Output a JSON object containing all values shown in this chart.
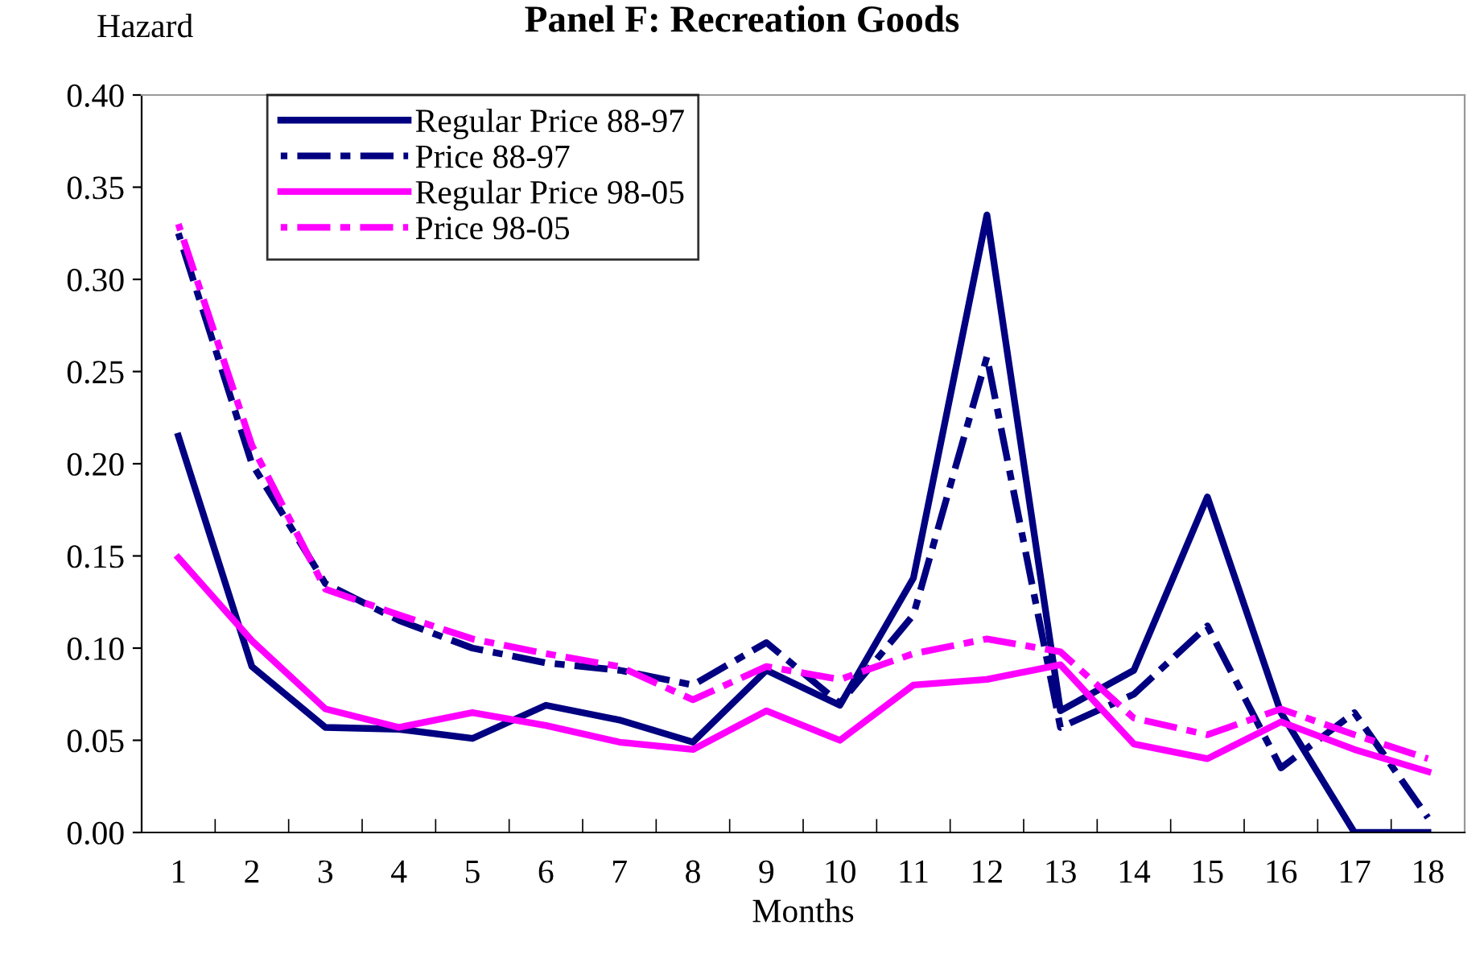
{
  "chart_data": {
    "type": "line",
    "title": "Panel F: Recreation Goods",
    "xlabel": "Months",
    "ylabel": "Hazard",
    "categories": [
      "1",
      "2",
      "3",
      "4",
      "5",
      "6",
      "7",
      "8",
      "9",
      "10",
      "11",
      "12",
      "13",
      "14",
      "15",
      "16",
      "17",
      "18"
    ],
    "series": [
      {
        "name": "Regular Price 88-97",
        "color": "#000080",
        "line_style": "solid",
        "values": [
          0.215,
          0.09,
          0.057,
          0.056,
          0.051,
          0.069,
          0.061,
          0.049,
          0.088,
          0.069,
          0.138,
          0.335,
          0.066,
          0.088,
          0.182,
          0.065,
          0.0,
          0.0
        ]
      },
      {
        "name": "Price 88-97",
        "color": "#000080",
        "line_style": "dashed",
        "values": [
          0.325,
          0.2,
          0.135,
          0.115,
          0.1,
          0.092,
          0.088,
          0.08,
          0.103,
          0.07,
          0.118,
          0.258,
          0.057,
          0.075,
          0.112,
          0.035,
          0.065,
          0.008
        ]
      },
      {
        "name": "Regular Price 98-05",
        "color": "#ff00ff",
        "line_style": "solid",
        "values": [
          0.149,
          0.104,
          0.067,
          0.057,
          0.065,
          0.058,
          0.049,
          0.045,
          0.066,
          0.05,
          0.08,
          0.083,
          0.091,
          0.048,
          0.04,
          0.06,
          0.045,
          0.033
        ]
      },
      {
        "name": "Price 98-05",
        "color": "#ff00ff",
        "line_style": "dashed",
        "values": [
          0.33,
          0.21,
          0.132,
          0.118,
          0.105,
          0.097,
          0.09,
          0.072,
          0.09,
          0.083,
          0.097,
          0.105,
          0.098,
          0.062,
          0.053,
          0.067,
          0.053,
          0.04
        ]
      }
    ],
    "ylim": [
      0,
      0.4
    ],
    "yticks": [
      {
        "value": 0,
        "label": "0.00"
      },
      {
        "value": 0.05,
        "label": "0.05"
      },
      {
        "value": 0.1,
        "label": "0.10"
      },
      {
        "value": 0.15,
        "label": "0.15"
      },
      {
        "value": 0.2,
        "label": "0.20"
      },
      {
        "value": 0.25,
        "label": "0.25"
      },
      {
        "value": 0.3,
        "label": "0.30"
      },
      {
        "value": 0.35,
        "label": "0.35"
      },
      {
        "value": 0.4,
        "label": "0.40"
      }
    ],
    "grid": false,
    "legend": "top left"
  }
}
